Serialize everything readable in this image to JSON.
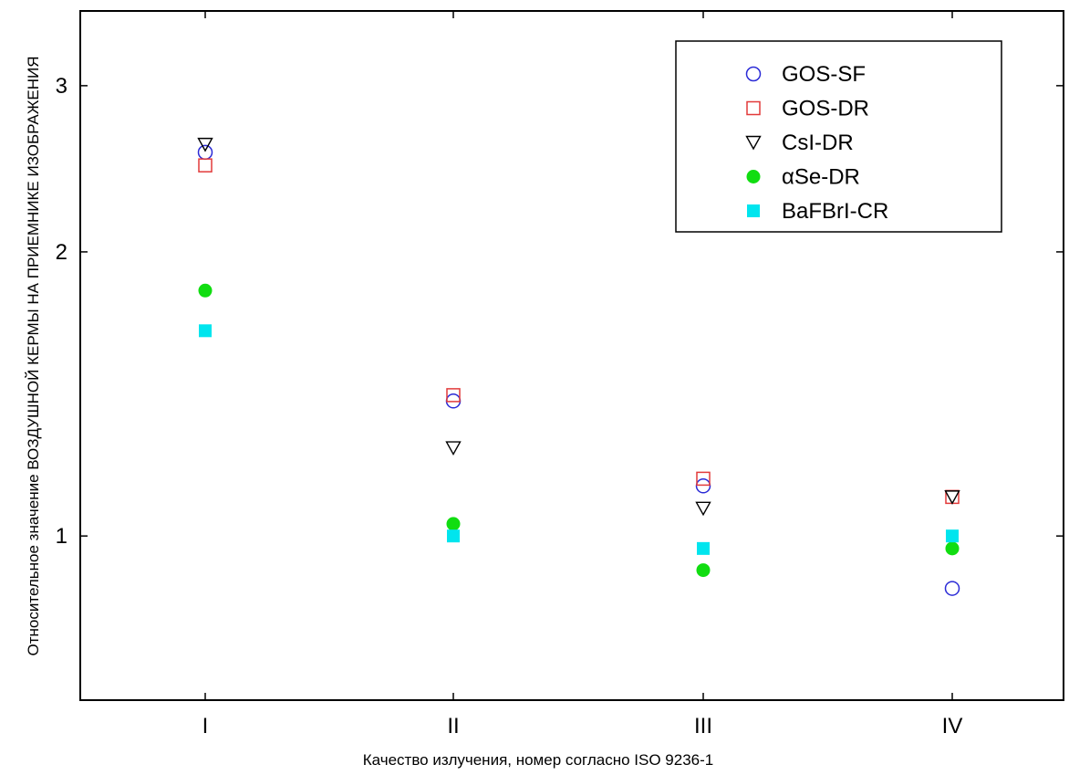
{
  "chart_data": {
    "type": "scatter",
    "title": "",
    "xlabel": "Качество излучения, номер согласно ISO 9236-1",
    "ylabel": "Относительное значение ВОЗДУШНОЙ КЕРМЫ НА ПРИЕМНИКЕ ИЗОБРАЖЕНИЯ",
    "y_scale": "log",
    "ylim": [
      0.67,
      3.6
    ],
    "y_ticks": [
      {
        "value": 1,
        "label": "1"
      },
      {
        "value": 2,
        "label": "2"
      },
      {
        "value": 3,
        "label": "3"
      }
    ],
    "categories": [
      "I",
      "II",
      "III",
      "IV"
    ],
    "legend_position": "top-right",
    "grid": false,
    "series": [
      {
        "name": "GOS-SF",
        "marker": "circle-open",
        "color": "#2b2bd6",
        "values": [
          2.55,
          1.39,
          1.13,
          0.88
        ]
      },
      {
        "name": "GOS-DR",
        "marker": "square-open",
        "color": "#e23a3a",
        "values": [
          2.47,
          1.41,
          1.15,
          1.1
        ]
      },
      {
        "name": "CsI-DR",
        "marker": "triangle-down-open",
        "color": "#000000",
        "values": [
          2.6,
          1.24,
          1.07,
          1.1
        ]
      },
      {
        "name": "αSe-DR",
        "marker": "circle-filled",
        "color": "#11dd11",
        "values": [
          1.82,
          1.03,
          0.92,
          0.97
        ]
      },
      {
        "name": "BaFBrI-CR",
        "marker": "square-filled",
        "color": "#00e5ee",
        "values": [
          1.65,
          1.0,
          0.97,
          1.0
        ]
      }
    ]
  }
}
